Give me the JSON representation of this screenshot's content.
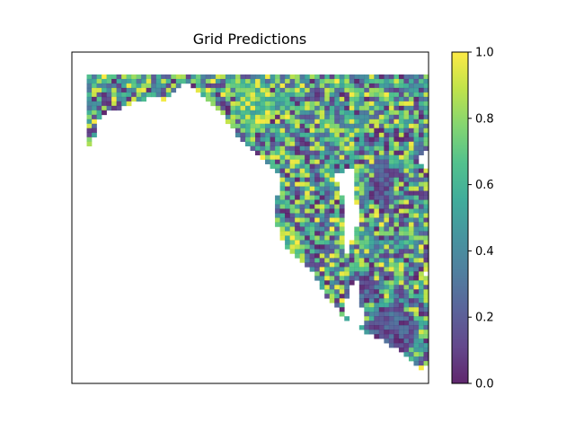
{
  "chart_data": {
    "type": "heatmap",
    "title": "Grid Predictions",
    "xlabel": "",
    "ylabel": "",
    "xticks": [],
    "yticks": [],
    "grid": false,
    "colormap": "viridis",
    "alpha": 0.85,
    "colorbar": {
      "vmin": 0.0,
      "vmax": 1.0,
      "ticks": [
        0.0,
        0.2,
        0.4,
        0.6,
        0.8,
        1.0
      ],
      "tick_labels": [
        "0.0",
        "0.2",
        "0.4",
        "0.6",
        "0.8",
        "1.0"
      ]
    },
    "resolution": [
      72,
      74
    ],
    "region_polygon": [
      [
        20,
        5
      ],
      [
        58,
        5
      ],
      [
        74,
        5
      ],
      [
        75,
        15
      ],
      [
        73,
        18
      ],
      [
        72,
        21
      ],
      [
        70,
        24
      ],
      [
        74,
        29
      ],
      [
        73,
        40
      ],
      [
        73,
        48
      ],
      [
        71,
        49
      ],
      [
        73,
        52
      ],
      [
        78,
        50
      ],
      [
        80,
        53
      ],
      [
        79,
        58
      ],
      [
        79,
        64
      ],
      [
        76,
        69
      ],
      [
        70,
        71
      ],
      [
        67,
        67
      ],
      [
        62,
        64
      ],
      [
        56,
        61
      ],
      [
        55,
        56
      ],
      [
        57,
        51
      ],
      [
        56,
        44
      ],
      [
        58,
        38
      ],
      [
        57,
        30
      ],
      [
        57,
        26
      ],
      [
        53,
        27
      ],
      [
        55,
        33
      ],
      [
        55,
        44
      ],
      [
        58,
        52
      ],
      [
        59,
        61
      ],
      [
        57,
        62
      ],
      [
        51,
        54
      ],
      [
        48,
        48
      ],
      [
        44,
        45
      ],
      [
        42,
        41
      ],
      [
        41,
        36
      ],
      [
        42,
        28
      ],
      [
        40,
        25
      ],
      [
        37,
        22
      ],
      [
        33,
        18
      ],
      [
        29,
        12
      ],
      [
        25,
        8
      ],
      [
        23,
        7
      ],
      [
        20,
        9
      ],
      [
        19,
        11
      ],
      [
        17,
        10
      ],
      [
        14,
        11
      ],
      [
        11,
        12
      ],
      [
        9,
        13
      ],
      [
        6,
        14
      ],
      [
        5,
        17
      ],
      [
        4,
        21
      ],
      [
        3,
        20
      ],
      [
        3,
        5
      ]
    ],
    "low_value_patches": [
      {
        "cx": 58,
        "cy": 53,
        "rx": 3,
        "ry": 3
      },
      {
        "cx": 65,
        "cy": 62,
        "rx": 5,
        "ry": 5
      },
      {
        "cx": 63,
        "cy": 30,
        "rx": 2,
        "ry": 6
      }
    ],
    "high_value_patches": [
      {
        "cx": 43,
        "cy": 44,
        "rx": 3,
        "ry": 6
      },
      {
        "cx": 37,
        "cy": 12,
        "rx": 4,
        "ry": 6
      }
    ]
  }
}
